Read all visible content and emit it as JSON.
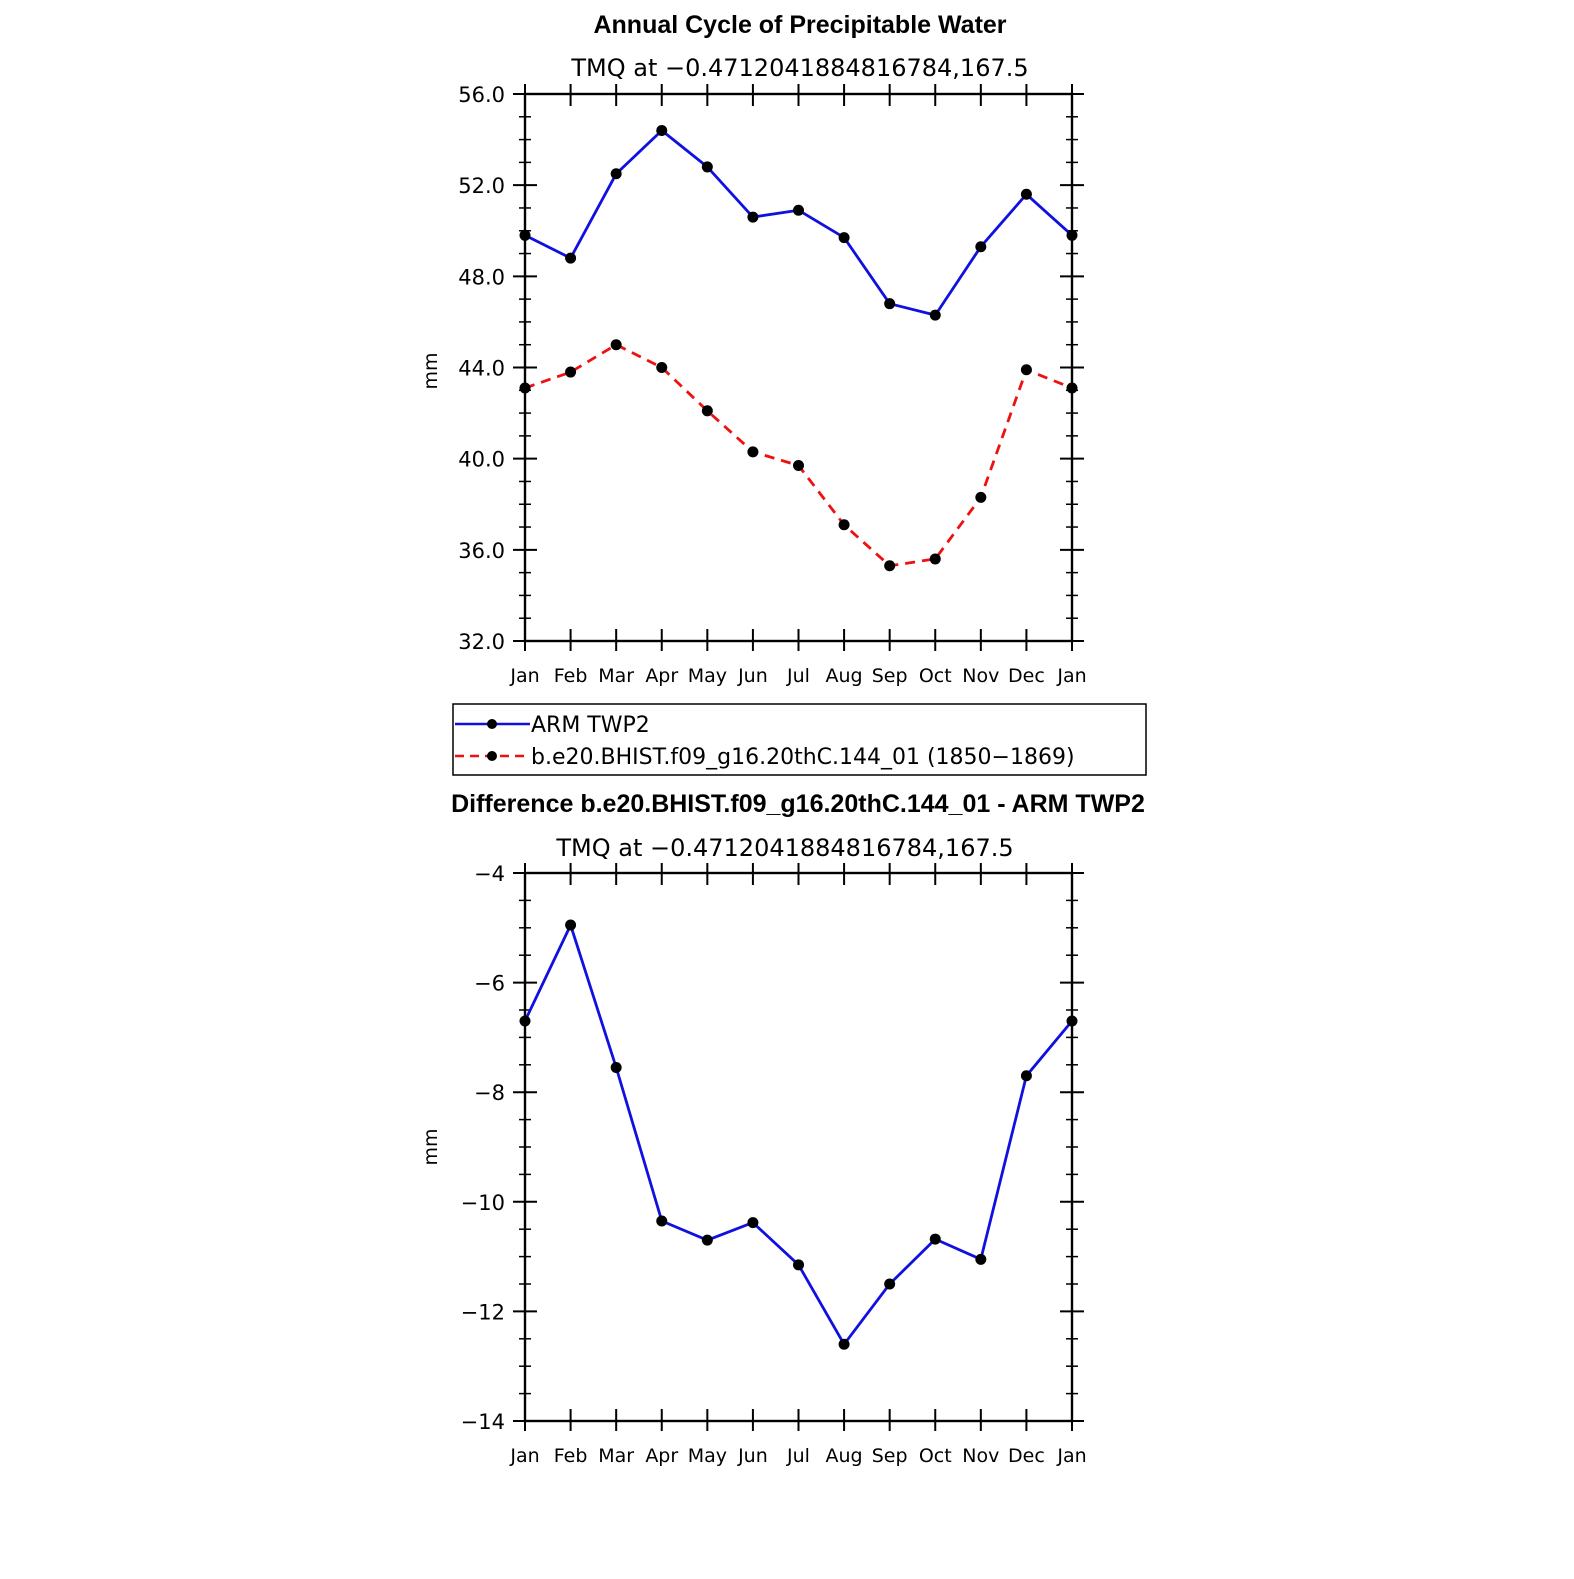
{
  "colors": {
    "series_obs": "#1010e0",
    "series_model": "#ee1111",
    "marker": "#000000",
    "axis": "#000000",
    "background": "#ffffff"
  },
  "chart_data": [
    {
      "type": "line",
      "title": "Annual Cycle of Precipitable Water",
      "subtitle": "TMQ at −0.4712041884816784,167.5",
      "ylabel": "mm",
      "ylim": [
        32.0,
        56.0
      ],
      "yticks": [
        32.0,
        36.0,
        40.0,
        44.0,
        48.0,
        52.0,
        56.0
      ],
      "ytick_labels": [
        "32.0",
        "36.0",
        "40.0",
        "44.0",
        "48.0",
        "52.0",
        "56.0"
      ],
      "categories": [
        "Jan",
        "Feb",
        "Mar",
        "Apr",
        "May",
        "Jun",
        "Jul",
        "Aug",
        "Sep",
        "Oct",
        "Nov",
        "Dec",
        "Jan"
      ],
      "series": [
        {
          "name": "ARM TWP2",
          "style": "solid",
          "values": [
            49.8,
            48.8,
            52.5,
            54.4,
            52.8,
            50.6,
            50.9,
            49.7,
            46.8,
            46.3,
            49.3,
            51.6,
            49.8
          ]
        },
        {
          "name": "b.e20.BHIST.f09_g16.20thC.144_01 (1850−1869)",
          "style": "dashed",
          "values": [
            43.1,
            43.8,
            45.0,
            44.0,
            42.1,
            40.3,
            39.7,
            37.1,
            35.3,
            35.6,
            38.3,
            43.9,
            43.1
          ]
        }
      ],
      "legend": {
        "position": "bottom",
        "entries": [
          "ARM TWP2",
          "b.e20.BHIST.f09_g16.20thC.144_01 (1850−1869)"
        ]
      },
      "grid": false
    },
    {
      "type": "line",
      "title": "Difference b.e20.BHIST.f09_g16.20thC.144_01 - ARM TWP2",
      "subtitle": "TMQ at −0.4712041884816784,167.5",
      "ylabel": "mm",
      "ylim": [
        -14,
        -4
      ],
      "yticks": [
        -14,
        -12,
        -10,
        -8,
        -6,
        -4
      ],
      "ytick_labels": [
        "−14",
        "−12",
        "−10",
        "−8",
        "−6",
        "−4"
      ],
      "categories": [
        "Jan",
        "Feb",
        "Mar",
        "Apr",
        "May",
        "Jun",
        "Jul",
        "Aug",
        "Sep",
        "Oct",
        "Nov",
        "Dec",
        "Jan"
      ],
      "series": [
        {
          "name": "Difference",
          "style": "solid",
          "values": [
            -6.7,
            -4.95,
            -7.55,
            -10.35,
            -10.7,
            -10.38,
            -11.15,
            -12.6,
            -11.5,
            -10.68,
            -11.05,
            -7.7,
            -6.7
          ]
        }
      ],
      "grid": false
    }
  ]
}
